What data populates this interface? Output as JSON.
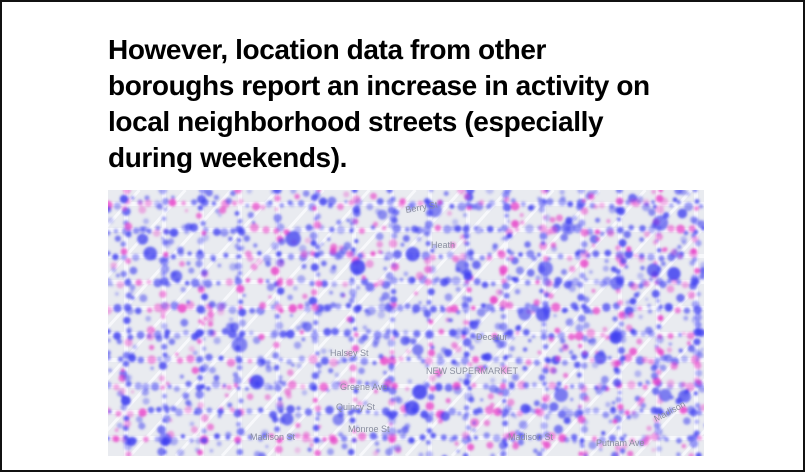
{
  "headline": {
    "lines": [
      "However, location data  from other",
      "boroughs report an increase in activity on",
      "local neighborhood streets (especially",
      "during weekends)."
    ]
  },
  "map": {
    "colors": {
      "activity_primary": "#3f3ff0",
      "activity_secondary": "#e83fc8",
      "base": "#e9ebf0",
      "street": "#f7f8fb"
    },
    "street_labels": [
      "Berry St",
      "Heath",
      "Halsey St",
      "Decatur",
      "Greene Ave",
      "NEW SUPERMARKET",
      "Quincy St",
      "Monroe St",
      "Madison St",
      "Madison St",
      "Putnam Ave",
      "Madison"
    ]
  }
}
